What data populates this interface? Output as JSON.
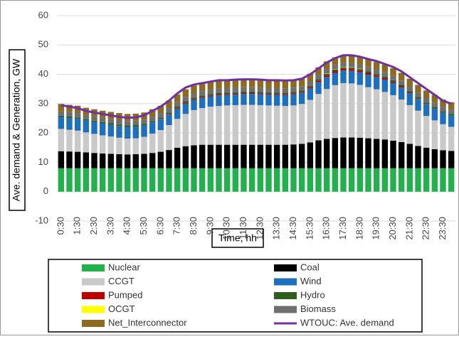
{
  "chart_data": {
    "type": "stacked_bar",
    "y_axis_label": "Ave. demand & Generation, GW",
    "x_axis_label": "Time, hh",
    "categories": [
      "0:30",
      null,
      "1:30",
      null,
      "2:30",
      null,
      "3:30",
      null,
      "4:30",
      null,
      "5:30",
      null,
      "6:30",
      null,
      "7:30",
      null,
      "8:30",
      null,
      "9:30",
      null,
      "10:30",
      null,
      "11:30",
      null,
      "12:30",
      null,
      "13:30",
      null,
      "14:30",
      null,
      "15:30",
      null,
      "16:30",
      null,
      "17:30",
      null,
      "18:30",
      null,
      "19:30",
      null,
      "20:30",
      null,
      "21:30",
      null,
      "22:30",
      null,
      "23:30",
      null
    ],
    "ylim": [
      -10,
      60
    ],
    "yticks": [
      -10,
      0,
      10,
      20,
      30,
      40,
      50,
      60
    ],
    "grid": true,
    "series": [
      {
        "name": "Nuclear",
        "color": "#22b14c",
        "values": [
          8,
          8,
          8,
          8,
          8,
          8,
          8,
          8,
          8,
          8,
          8,
          8,
          8,
          8,
          8,
          8,
          8,
          8,
          8,
          8,
          8,
          8,
          8,
          8,
          8,
          8,
          8,
          8,
          8,
          8,
          8,
          8,
          8,
          8,
          8,
          8,
          8,
          8,
          8,
          8,
          8,
          8,
          8,
          8,
          8,
          8,
          8,
          8
        ]
      },
      {
        "name": "Coal",
        "color": "#000000",
        "values": [
          5.8,
          5.7,
          5.6,
          5.4,
          5.2,
          5.0,
          4.9,
          4.8,
          4.7,
          4.8,
          4.9,
          5.2,
          5.6,
          6.2,
          7.0,
          7.5,
          7.8,
          8.0,
          8.0,
          8.0,
          8.0,
          8.0,
          8.0,
          8.0,
          8.0,
          8.0,
          8.0,
          8.0,
          8.1,
          8.3,
          8.8,
          9.5,
          10.0,
          10.3,
          10.5,
          10.5,
          10.4,
          10.2,
          10.0,
          9.8,
          9.4,
          8.9,
          8.3,
          7.6,
          7.0,
          6.5,
          6.1,
          5.9
        ]
      },
      {
        "name": "CCGT",
        "color": "#c9c9c9",
        "values": [
          7.6,
          7.4,
          7.2,
          6.8,
          6.5,
          6.2,
          5.9,
          5.6,
          5.4,
          5.4,
          5.8,
          6.6,
          7.4,
          8.5,
          9.8,
          11.0,
          12.0,
          12.5,
          13.0,
          13.2,
          13.4,
          13.5,
          13.6,
          13.6,
          13.5,
          13.4,
          13.3,
          13.2,
          13.3,
          13.6,
          14.5,
          15.8,
          17.0,
          18.0,
          18.5,
          18.4,
          18.0,
          17.4,
          16.9,
          16.2,
          15.5,
          14.5,
          13.2,
          12.0,
          10.8,
          9.8,
          8.9,
          8.2
        ]
      },
      {
        "name": "Wind",
        "color": "#1f6fbf",
        "values": [
          4.0,
          4.0,
          4.0,
          4.0,
          4.0,
          4.0,
          4.0,
          4.0,
          4.0,
          4.0,
          3.9,
          3.8,
          3.7,
          3.6,
          3.5,
          3.5,
          3.5,
          3.5,
          3.5,
          3.6,
          3.6,
          3.6,
          3.7,
          3.7,
          3.7,
          3.7,
          3.7,
          3.7,
          3.8,
          3.8,
          3.9,
          4.0,
          4.1,
          4.2,
          4.3,
          4.3,
          4.3,
          4.3,
          4.2,
          4.2,
          4.2,
          4.1,
          4.1,
          4.0,
          4.0,
          4.0,
          3.9,
          3.9
        ]
      },
      {
        "name": "Pumped",
        "color": "#c00000",
        "values": [
          0,
          0,
          0,
          0,
          0,
          0,
          0,
          0,
          0,
          0,
          0,
          0,
          0.1,
          0.2,
          0.3,
          0.3,
          0.3,
          0.3,
          0.3,
          0.3,
          0.3,
          0.3,
          0.3,
          0.3,
          0.3,
          0.3,
          0.3,
          0.3,
          0.3,
          0.3,
          0.4,
          0.5,
          0.6,
          0.6,
          0.6,
          0.6,
          0.6,
          0.6,
          0.5,
          0.5,
          0.4,
          0.4,
          0.3,
          0.2,
          0.1,
          0.1,
          0,
          0
        ]
      },
      {
        "name": "Hydro",
        "color": "#2d5e1e",
        "values": [
          0.5,
          0.5,
          0.5,
          0.5,
          0.5,
          0.5,
          0.5,
          0.5,
          0.5,
          0.5,
          0.5,
          0.5,
          0.5,
          0.5,
          0.5,
          0.5,
          0.5,
          0.5,
          0.5,
          0.5,
          0.5,
          0.5,
          0.5,
          0.5,
          0.5,
          0.5,
          0.5,
          0.5,
          0.5,
          0.5,
          0.5,
          0.5,
          0.5,
          0.5,
          0.5,
          0.5,
          0.5,
          0.5,
          0.5,
          0.5,
          0.5,
          0.5,
          0.5,
          0.5,
          0.5,
          0.5,
          0.5,
          0.5
        ]
      },
      {
        "name": "OCGT",
        "color": "#ffff00",
        "values": [
          0,
          0,
          0,
          0,
          0,
          0,
          0,
          0,
          0,
          0,
          0,
          0,
          0,
          0,
          0,
          0,
          0,
          0,
          0,
          0,
          0,
          0,
          0,
          0,
          0,
          0,
          0,
          0,
          0,
          0,
          0,
          0,
          0.1,
          0.1,
          0.1,
          0.1,
          0.1,
          0,
          0,
          0,
          0,
          0,
          0,
          0,
          0,
          0,
          0,
          0
        ]
      },
      {
        "name": "Biomass",
        "color": "#6f6f6f",
        "values": [
          1.5,
          1.5,
          1.5,
          1.5,
          1.5,
          1.5,
          1.5,
          1.5,
          1.5,
          1.5,
          1.5,
          1.5,
          1.5,
          1.5,
          1.5,
          1.5,
          1.5,
          1.5,
          1.5,
          1.5,
          1.5,
          1.5,
          1.5,
          1.5,
          1.5,
          1.5,
          1.5,
          1.5,
          1.5,
          1.5,
          1.5,
          1.5,
          1.5,
          1.5,
          1.5,
          1.5,
          1.5,
          1.5,
          1.5,
          1.5,
          1.5,
          1.5,
          1.5,
          1.5,
          1.5,
          1.5,
          1.5,
          1.5
        ]
      },
      {
        "name": "Net_Interconnector",
        "color": "#8c6a1f",
        "values": [
          2.5,
          2.5,
          2.5,
          2.4,
          2.4,
          2.4,
          2.4,
          2.4,
          2.4,
          2.4,
          2.4,
          2.5,
          2.5,
          2.6,
          2.6,
          2.6,
          2.6,
          2.6,
          2.6,
          2.6,
          2.6,
          2.6,
          2.6,
          2.6,
          2.6,
          2.6,
          2.6,
          2.6,
          2.6,
          2.6,
          2.6,
          2.6,
          2.6,
          2.6,
          2.6,
          2.6,
          2.6,
          2.6,
          2.6,
          2.6,
          2.6,
          2.6,
          2.6,
          2.6,
          2.6,
          2.6,
          2.5,
          2.5
        ]
      }
    ],
    "line": {
      "name": "WTOUC: Ave. demand",
      "color": "#7030a0",
      "values": [
        29.5,
        29,
        28.5,
        27.5,
        27,
        26.5,
        26,
        25.5,
        25.2,
        25.3,
        26,
        27.5,
        29,
        31,
        33.5,
        35.5,
        36.5,
        37,
        37.5,
        38,
        38,
        38.2,
        38.3,
        38.3,
        38.2,
        38,
        38,
        37.9,
        38,
        38.5,
        40,
        42,
        44,
        45.5,
        46.5,
        46.5,
        46,
        45.2,
        44.5,
        43.5,
        42.5,
        41,
        39,
        37,
        35,
        33,
        31,
        30
      ]
    }
  }
}
